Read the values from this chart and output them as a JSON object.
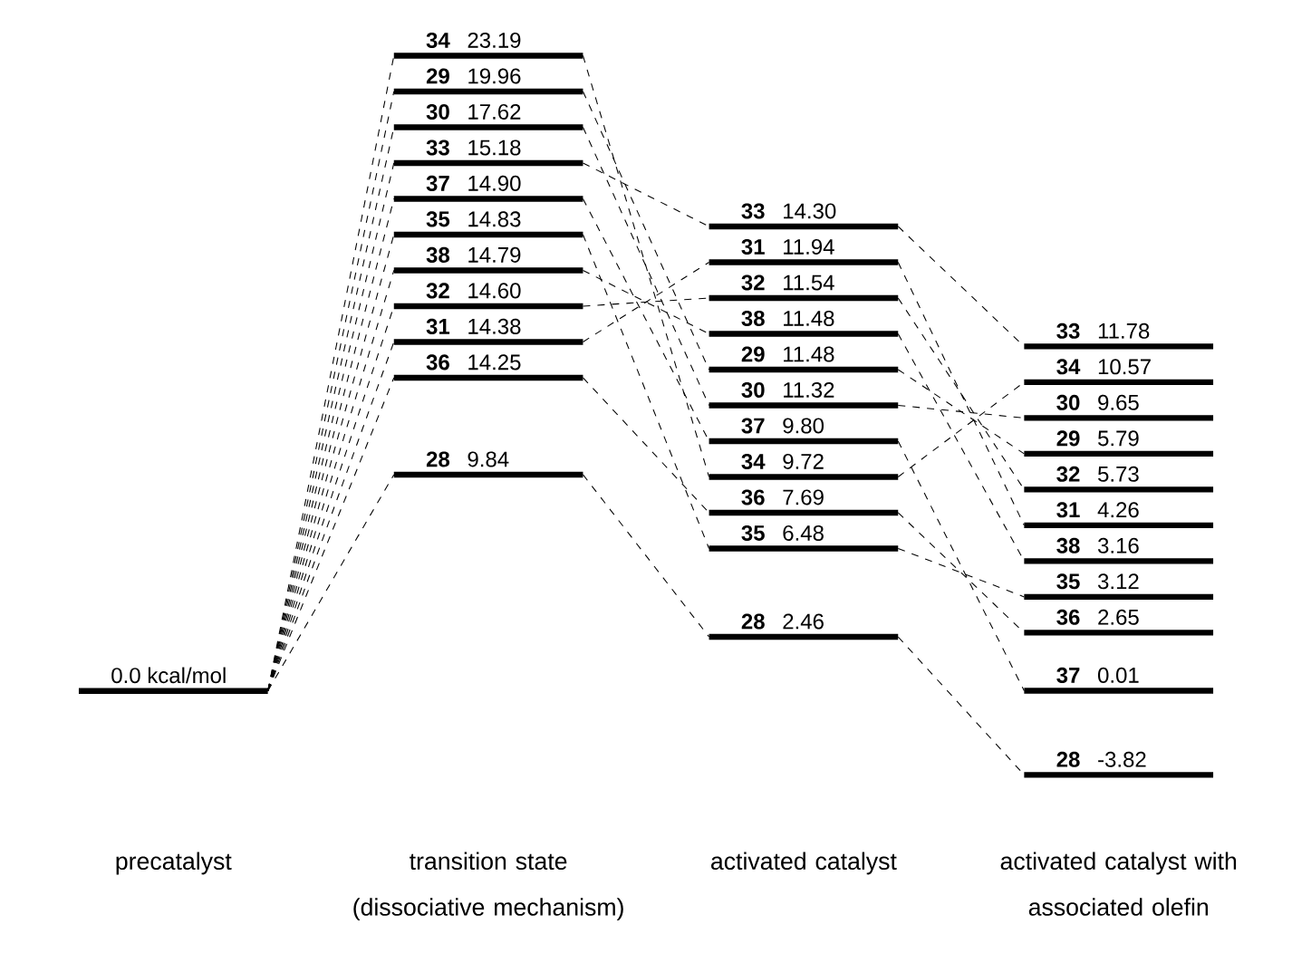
{
  "chart_data": {
    "type": "other",
    "categories": [
      "precatalyst",
      "transition state (dissociative mechanism)",
      "activated catalyst",
      "activated catalyst with associated olefin"
    ],
    "series": [
      {
        "color": "#000000",
        "values": [
          0.0,
          null,
          null,
          null
        ],
        "value_labels": [
          "0.0 kcal/mol",
          null,
          null,
          null
        ]
      },
      {
        "name": "28",
        "color": "#000000",
        "values": [
          null,
          9.84,
          2.46,
          -3.82
        ],
        "value_labels": [
          null,
          "9.84",
          "2.46",
          "-3.82"
        ]
      },
      {
        "name": "29",
        "color": "#000000",
        "values": [
          null,
          19.96,
          11.48,
          5.79
        ],
        "value_labels": [
          null,
          "19.96",
          "11.48",
          "5.79"
        ]
      },
      {
        "name": "30",
        "color": "#000000",
        "values": [
          null,
          17.62,
          11.32,
          9.65
        ],
        "value_labels": [
          null,
          "17.62",
          "11.32",
          "9.65"
        ]
      },
      {
        "name": "31",
        "color": "#000000",
        "values": [
          null,
          14.38,
          11.94,
          4.26
        ],
        "value_labels": [
          null,
          "14.38",
          "11.94",
          "4.26"
        ]
      },
      {
        "name": "32",
        "color": "#000000",
        "values": [
          null,
          14.6,
          11.54,
          5.73
        ],
        "value_labels": [
          null,
          "14.60",
          "11.54",
          "5.73"
        ]
      },
      {
        "name": "33",
        "color": "#000000",
        "values": [
          null,
          15.18,
          14.3,
          11.78
        ],
        "value_labels": [
          null,
          "15.18",
          "14.30",
          "11.78"
        ]
      },
      {
        "name": "34",
        "color": "#000000",
        "values": [
          null,
          23.19,
          9.72,
          10.57
        ],
        "value_labels": [
          null,
          "23.19",
          "9.72",
          "10.57"
        ]
      },
      {
        "name": "35",
        "color": "#000000",
        "values": [
          null,
          14.83,
          6.48,
          3.12
        ],
        "value_labels": [
          null,
          "14.83",
          "6.48",
          "3.12"
        ]
      },
      {
        "name": "36",
        "color": "#000000",
        "values": [
          null,
          14.25,
          7.69,
          2.65
        ],
        "value_labels": [
          null,
          "14.25",
          "7.69",
          "2.65"
        ]
      },
      {
        "name": "37",
        "color": "#000000",
        "values": [
          null,
          14.9,
          9.8,
          0.01
        ],
        "value_labels": [
          null,
          "14.90",
          "9.80",
          "0.01"
        ]
      },
      {
        "name": "38",
        "color": "#000000",
        "values": [
          null,
          14.79,
          11.48,
          3.16
        ],
        "value_labels": [
          null,
          "14.79",
          "11.48",
          "3.16"
        ]
      }
    ]
  }
}
